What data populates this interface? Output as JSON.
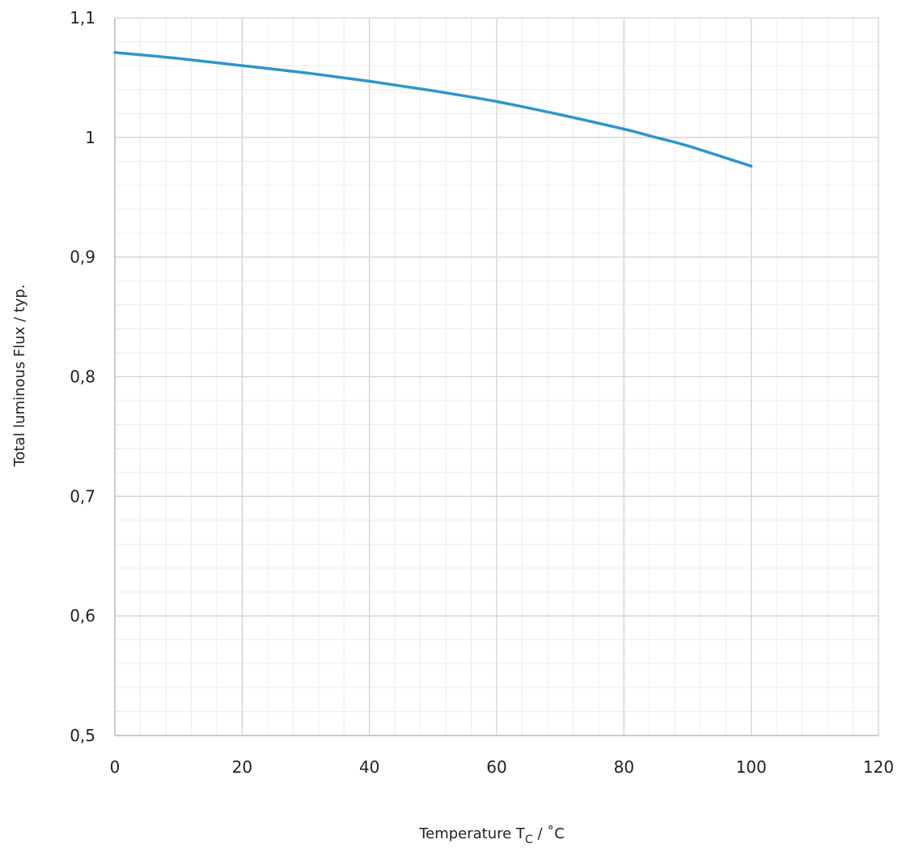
{
  "chart_data": {
    "type": "line",
    "title": "",
    "xlabel": {
      "main": "Temperature T",
      "sub": "C",
      "rest": " / ˚C"
    },
    "ylabel": "Total luminous Flux / typ.",
    "xlim": [
      0,
      120
    ],
    "ylim": [
      0.5,
      1.1
    ],
    "x_ticks": [
      0,
      20,
      40,
      60,
      80,
      100,
      120
    ],
    "x_tick_labels": [
      "0",
      "20",
      "40",
      "60",
      "80",
      "100",
      "120"
    ],
    "y_ticks": [
      0.5,
      0.6,
      0.7,
      0.8,
      0.9,
      1.0,
      1.1
    ],
    "y_tick_labels": [
      "0,5",
      "0,6",
      "0,7",
      "0,8",
      "0,9",
      "1",
      "1,1"
    ],
    "x_minor_step": 4,
    "y_minor_step": 0.02,
    "grid": true,
    "series": [
      {
        "color": "#2e95cc",
        "x": [
          0,
          10,
          20,
          30,
          40,
          50,
          60,
          70,
          80,
          85,
          90,
          100
        ],
        "y": [
          1.071,
          1.066,
          1.06,
          1.054,
          1.047,
          1.039,
          1.03,
          1.019,
          1.007,
          1.0,
          0.993,
          0.976
        ]
      }
    ]
  }
}
